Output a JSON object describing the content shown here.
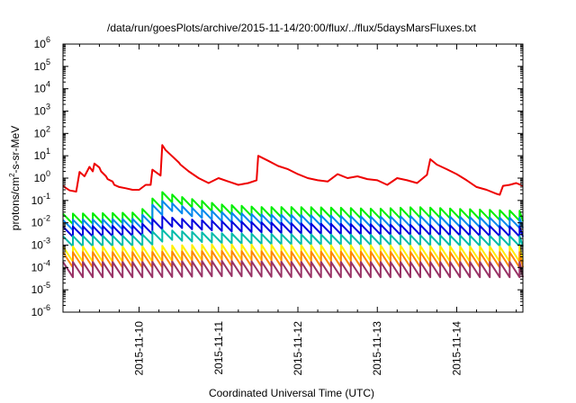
{
  "chart_data": {
    "type": "line",
    "title": "/data/run/goesPlots/archive/2015-11-14/20:00/flux/../flux/5daysMarsFluxes.txt",
    "xlabel": "Coordinated Universal Time (UTC)",
    "ylabel_main": "protons/cm",
    "ylabel_sup": "2",
    "ylabel_rest": "-s-sr-MeV",
    "yscale": "log",
    "xscale": "time",
    "xlim": [
      "2015-11-09T01:00",
      "2015-11-14T20:00"
    ],
    "ylim": [
      1e-06,
      1000000.0
    ],
    "grid": false,
    "legend": "none",
    "y_ticks": [
      {
        "value": 1e-06,
        "base": "10",
        "exp": "-6"
      },
      {
        "value": 1e-05,
        "base": "10",
        "exp": "-5"
      },
      {
        "value": 0.0001,
        "base": "10",
        "exp": "-4"
      },
      {
        "value": 0.001,
        "base": "10",
        "exp": "-3"
      },
      {
        "value": 0.01,
        "base": "10",
        "exp": "-2"
      },
      {
        "value": 0.1,
        "base": "10",
        "exp": "-1"
      },
      {
        "value": 1,
        "base": "10",
        "exp": "0"
      },
      {
        "value": 10.0,
        "base": "10",
        "exp": "1"
      },
      {
        "value": 100.0,
        "base": "10",
        "exp": "2"
      },
      {
        "value": 1000.0,
        "base": "10",
        "exp": "3"
      },
      {
        "value": 10000.0,
        "base": "10",
        "exp": "4"
      },
      {
        "value": 100000.0,
        "base": "10",
        "exp": "5"
      },
      {
        "value": 1000000.0,
        "base": "10",
        "exp": "6"
      }
    ],
    "x_ticks": [
      {
        "value": "2015-11-10",
        "label": "2015-11-10"
      },
      {
        "value": "2015-11-11",
        "label": "2015-11-11"
      },
      {
        "value": "2015-11-12",
        "label": "2015-11-12"
      },
      {
        "value": "2015-11-13",
        "label": "2015-11-13"
      },
      {
        "value": "2015-11-14",
        "label": "2015-11-14"
      }
    ],
    "series": [
      {
        "color": "#ee0000",
        "x": [
          "2015-11-09T01:00",
          "2015-11-09T02:00",
          "2015-11-09T03:00",
          "2015-11-09T05:00",
          "2015-11-09T06:00",
          "2015-11-09T07:30",
          "2015-11-09T09:00",
          "2015-11-09T10:00",
          "2015-11-09T10:30",
          "2015-11-09T12:00",
          "2015-11-09T12:30",
          "2015-11-09T14:00",
          "2015-11-09T14:30",
          "2015-11-09T16:00",
          "2015-11-09T16:30",
          "2015-11-09T18:00",
          "2015-11-09T20:00",
          "2015-11-09T22:00",
          "2015-11-10T00:00",
          "2015-11-10T02:00",
          "2015-11-10T03:30",
          "2015-11-10T04:00",
          "2015-11-10T06:30",
          "2015-11-10T07:00",
          "2015-11-10T08:00",
          "2015-11-10T12:00",
          "2015-11-10T12:30",
          "2015-11-10T15:00",
          "2015-11-10T18:00",
          "2015-11-10T21:00",
          "2015-11-11T00:00",
          "2015-11-11T03:00",
          "2015-11-11T06:00",
          "2015-11-11T09:00",
          "2015-11-11T11:30",
          "2015-11-11T12:00",
          "2015-11-11T15:00",
          "2015-11-11T18:00",
          "2015-11-11T21:00",
          "2015-11-12T00:00",
          "2015-11-12T03:00",
          "2015-11-12T06:00",
          "2015-11-12T09:00",
          "2015-11-12T12:00",
          "2015-11-12T15:00",
          "2015-11-12T18:00",
          "2015-11-12T21:00",
          "2015-11-13T00:00",
          "2015-11-13T03:00",
          "2015-11-13T06:00",
          "2015-11-13T09:00",
          "2015-11-13T12:00",
          "2015-11-13T15:00",
          "2015-11-13T16:00",
          "2015-11-13T18:00",
          "2015-11-13T21:00",
          "2015-11-14T00:00",
          "2015-11-14T03:00",
          "2015-11-14T06:00",
          "2015-11-14T09:00",
          "2015-11-14T12:00",
          "2015-11-14T13:00",
          "2015-11-14T14:00",
          "2015-11-14T16:00",
          "2015-11-14T18:00",
          "2015-11-14T20:00"
        ],
        "values": [
          0.45,
          0.35,
          0.28,
          0.25,
          1.9,
          1.2,
          3.2,
          2.0,
          4.5,
          3.0,
          2.0,
          1.2,
          0.9,
          0.7,
          0.5,
          0.4,
          0.35,
          0.3,
          0.3,
          0.5,
          0.5,
          2.4,
          1.3,
          30,
          18,
          5.0,
          4.0,
          2.0,
          1.0,
          0.6,
          1.0,
          0.7,
          0.5,
          0.6,
          0.8,
          10,
          6,
          3.5,
          2.5,
          1.5,
          1.0,
          0.8,
          0.7,
          1.5,
          1.0,
          1.2,
          0.9,
          0.8,
          0.5,
          1.0,
          0.8,
          0.6,
          1.4,
          7,
          4,
          2.5,
          1.5,
          0.8,
          0.4,
          0.3,
          0.2,
          0.18,
          0.45,
          0.5,
          0.6,
          0.45
        ]
      },
      {
        "color": "#00ee00",
        "x": [
          "2015-11-09T01:00",
          "2015-11-10T00:00",
          "2015-11-10T03:00",
          "2015-11-10T06:00",
          "2015-11-10T09:00",
          "2015-11-10T12:00",
          "2015-11-10T18:00",
          "2015-11-11T00:00",
          "2015-11-11T12:00",
          "2015-11-12T00:00",
          "2015-11-12T12:00",
          "2015-11-13T00:00",
          "2015-11-13T12:00",
          "2015-11-14T00:00",
          "2015-11-14T12:00",
          "2015-11-14T20:00"
        ],
        "values": [
          0.015,
          0.017,
          0.05,
          0.15,
          0.12,
          0.09,
          0.06,
          0.04,
          0.03,
          0.03,
          0.028,
          0.025,
          0.03,
          0.025,
          0.022,
          0.02
        ]
      },
      {
        "color": "#0088ee",
        "x": [
          "2015-11-09T01:00",
          "2015-11-10T00:00",
          "2015-11-10T03:00",
          "2015-11-10T06:00",
          "2015-11-10T09:00",
          "2015-11-10T12:00",
          "2015-11-10T18:00",
          "2015-11-11T00:00",
          "2015-11-11T12:00",
          "2015-11-12T00:00",
          "2015-11-12T12:00",
          "2015-11-13T00:00",
          "2015-11-13T12:00",
          "2015-11-14T00:00",
          "2015-11-14T12:00",
          "2015-11-14T20:00"
        ],
        "values": [
          0.008,
          0.009,
          0.03,
          0.06,
          0.05,
          0.035,
          0.025,
          0.018,
          0.014,
          0.013,
          0.012,
          0.011,
          0.012,
          0.011,
          0.01,
          0.01
        ]
      },
      {
        "color": "#0000dd",
        "x": [
          "2015-11-09T01:00",
          "2015-11-10T00:00",
          "2015-11-10T06:00",
          "2015-11-10T12:00",
          "2015-11-11T00:00",
          "2015-11-12T00:00",
          "2015-11-13T00:00",
          "2015-11-14T00:00",
          "2015-11-14T20:00"
        ],
        "values": [
          0.004,
          0.0045,
          0.012,
          0.009,
          0.007,
          0.0055,
          0.005,
          0.0045,
          0.004
        ]
      },
      {
        "color": "#00bbaa",
        "x": [
          "2015-11-09T01:00",
          "2015-11-10T00:00",
          "2015-11-10T06:00",
          "2015-11-10T12:00",
          "2015-11-11T00:00",
          "2015-11-12T00:00",
          "2015-11-13T00:00",
          "2015-11-14T00:00",
          "2015-11-14T20:00"
        ],
        "values": [
          0.0015,
          0.0016,
          0.003,
          0.0025,
          0.002,
          0.0018,
          0.0017,
          0.0016,
          0.0015
        ]
      },
      {
        "color": "#ffee00",
        "x": [
          "2015-11-09T01:00",
          "2015-11-10T00:00",
          "2015-11-11T00:00",
          "2015-11-12T00:00",
          "2015-11-13T00:00",
          "2015-11-14T00:00",
          "2015-11-14T20:00"
        ],
        "values": [
          0.0004,
          0.0004,
          0.0005,
          0.00045,
          0.00045,
          0.0004,
          0.0004
        ]
      },
      {
        "color": "#ff8800",
        "x": [
          "2015-11-09T01:00",
          "2015-11-10T00:00",
          "2015-11-11T00:00",
          "2015-11-12T00:00",
          "2015-11-13T00:00",
          "2015-11-14T00:00",
          "2015-11-14T20:00"
        ],
        "values": [
          0.00022,
          0.00022,
          0.00025,
          0.00023,
          0.00023,
          0.00022,
          0.00022
        ]
      },
      {
        "color": "#993366",
        "x": [
          "2015-11-09T01:00",
          "2015-11-10T00:00",
          "2015-11-11T00:00",
          "2015-11-12T00:00",
          "2015-11-13T00:00",
          "2015-11-14T00:00",
          "2015-11-14T20:00"
        ],
        "values": [
          8e-05,
          8e-05,
          9e-05,
          8e-05,
          8e-05,
          8e-05,
          8e-05
        ]
      }
    ]
  }
}
